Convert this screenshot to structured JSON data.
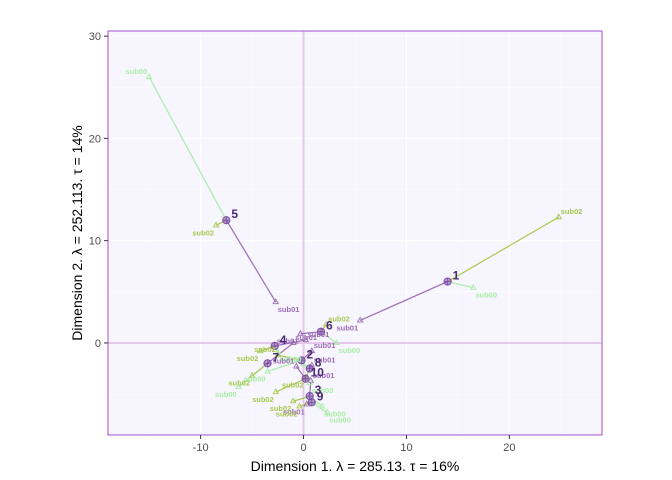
{
  "colors": {
    "panel_bg": "#f7f5fd",
    "panel_border": "#a64dcf",
    "grid": "#ffffff",
    "zero_line": "#e7c6ec",
    "centroid": "#7e4ea8",
    "sub00": "#a8eea8",
    "sub01": "#9b6db5",
    "sub02": "#a9c94f"
  },
  "chart_data": {
    "type": "scatter",
    "xlabel": "Dimension 1.   λ = 285.13.  τ = 16%",
    "ylabel": "Dimension 2.   λ = 252.113.  τ = 14%",
    "xlim": [
      -19,
      29
    ],
    "ylim": [
      -9,
      30.5
    ],
    "xticks": [
      -10,
      0,
      10,
      20
    ],
    "yticks": [
      0,
      10,
      20,
      30
    ],
    "grid": true,
    "zero_lines": true,
    "points": [
      {
        "label": "1",
        "x": 14.0,
        "y": 6.0,
        "subs": [
          {
            "name": "sub00",
            "x": 16.5,
            "y": 5.4
          },
          {
            "name": "sub01",
            "x": 5.5,
            "y": 2.2
          },
          {
            "name": "sub02",
            "x": 24.8,
            "y": 12.3
          }
        ]
      },
      {
        "name_note": "",
        "label": "2",
        "x": -0.2,
        "y": -1.7,
        "subs": [
          {
            "name": "sub00",
            "x": -3.5,
            "y": -2.8
          },
          {
            "name": "sub01",
            "x": 0.8,
            "y": -0.8
          },
          {
            "name": "sub02",
            "x": -2.5,
            "y": -1.2
          }
        ]
      },
      {
        "label": "3",
        "x": 0.6,
        "y": -5.2,
        "subs": [
          {
            "name": "sub00",
            "x": 1.8,
            "y": -6.2
          },
          {
            "name": "sub01",
            "x": 0.7,
            "y": -3.7
          },
          {
            "name": "sub02",
            "x": -1.0,
            "y": -5.7
          }
        ]
      },
      {
        "label": "4",
        "x": -2.8,
        "y": -0.3,
        "subs": [
          {
            "name": "sub00",
            "x": -2.5,
            "y": -0.9
          },
          {
            "name": "sub01",
            "x": 0.2,
            "y": 0.3
          },
          {
            "name": "sub02",
            "x": -4.2,
            "y": -0.8
          }
        ]
      },
      {
        "label": "5",
        "x": -7.5,
        "y": 12.0,
        "subs": [
          {
            "name": "sub00",
            "x": -15.0,
            "y": 26.0
          },
          {
            "name": "sub01",
            "x": -2.7,
            "y": 4.0
          },
          {
            "name": "sub02",
            "x": -8.5,
            "y": 11.5
          }
        ]
      },
      {
        "label": "6",
        "x": 1.7,
        "y": 1.1,
        "subs": [
          {
            "name": "sub00",
            "x": 3.2,
            "y": 0.0
          },
          {
            "name": "sub01",
            "x": -0.3,
            "y": 0.9
          },
          {
            "name": "sub02",
            "x": 2.2,
            "y": 1.8
          }
        ]
      },
      {
        "label": "7",
        "x": -3.5,
        "y": -2.0,
        "subs": [
          {
            "name": "sub00",
            "x": -6.3,
            "y": -4.3
          },
          {
            "name": "sub01",
            "x": -1.0,
            "y": 0.0
          },
          {
            "name": "sub02",
            "x": -5.0,
            "y": -3.2
          }
        ]
      },
      {
        "label": "8",
        "x": 0.6,
        "y": -2.5,
        "subs": [
          {
            "name": "sub00",
            "x": 0.0,
            "y": -2.1
          },
          {
            "name": "sub01",
            "x": 0.8,
            "y": -2.2
          },
          {
            "name": "sub02",
            "x": 0.2,
            "y": -3.4
          }
        ]
      },
      {
        "label": "9",
        "x": 0.8,
        "y": -5.8,
        "subs": [
          {
            "name": "sub00",
            "x": 2.3,
            "y": -6.8
          },
          {
            "name": "sub01",
            "x": 0.3,
            "y": -6.0
          },
          {
            "name": "sub02",
            "x": -0.4,
            "y": -6.2
          }
        ]
      },
      {
        "label": "10",
        "x": 0.2,
        "y": -3.5,
        "subs": [
          {
            "name": "sub00",
            "x": 0.6,
            "y": -3.9
          },
          {
            "name": "sub01",
            "x": -0.7,
            "y": -2.3
          },
          {
            "name": "sub02",
            "x": -2.7,
            "y": -4.8
          }
        ]
      }
    ]
  }
}
